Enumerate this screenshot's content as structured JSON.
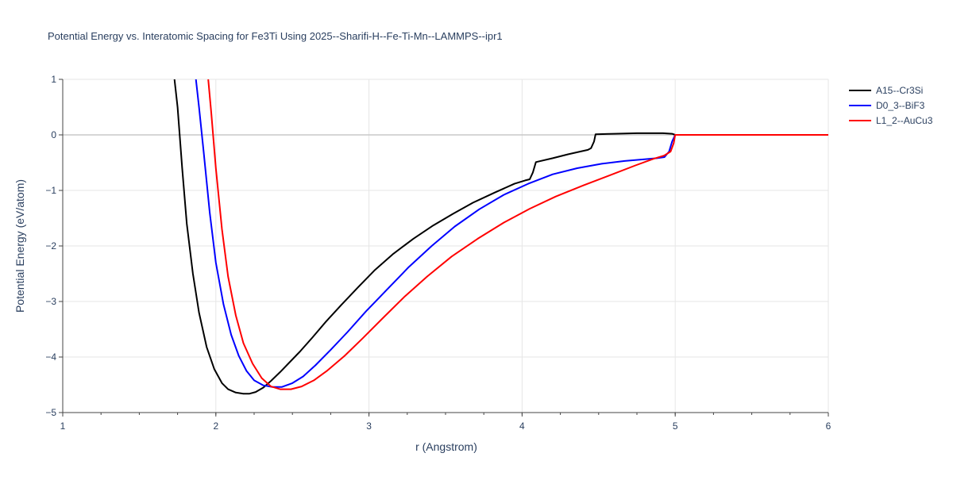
{
  "chart_data": {
    "type": "line",
    "title": "Potential Energy vs. Interatomic Spacing for Fe3Ti Using 2025--Sharifi-H--Fe-Ti-Mn--LAMMPS--ipr1",
    "xlabel": "r (Angstrom)",
    "ylabel": "Potential Energy (eV/atom)",
    "xlim": [
      1,
      6
    ],
    "ylim": [
      -5,
      1
    ],
    "xticks": [
      1,
      2,
      3,
      4,
      5,
      6
    ],
    "xtick_labels": [
      "1",
      "2",
      "3",
      "4",
      "5",
      "6"
    ],
    "yticks": [
      1,
      0,
      -1,
      -2,
      -3,
      -4,
      -5
    ],
    "ytick_labels": [
      "1",
      "0",
      "−1",
      "−2",
      "−3",
      "−4",
      "−5"
    ],
    "grid": true,
    "legend_position": "top-right",
    "series": [
      {
        "name": "A15--Cr3Si",
        "color": "#000000",
        "x": [
          1.73,
          1.75,
          1.78,
          1.81,
          1.85,
          1.89,
          1.94,
          1.99,
          2.04,
          2.08,
          2.13,
          2.18,
          2.22,
          2.26,
          2.31,
          2.36,
          2.42,
          2.48,
          2.55,
          2.63,
          2.72,
          2.82,
          2.93,
          3.04,
          3.16,
          3.29,
          3.42,
          3.55,
          3.68,
          3.82,
          3.95,
          4.02,
          4.05,
          4.07,
          4.09,
          4.2,
          4.3,
          4.38,
          4.43,
          4.45,
          4.47,
          4.48,
          4.6,
          4.75,
          4.92,
          4.98,
          5.0,
          5.2,
          5.5,
          6.0
        ],
        "y": [
          1.0,
          0.5,
          -0.6,
          -1.6,
          -2.5,
          -3.2,
          -3.82,
          -4.22,
          -4.47,
          -4.58,
          -4.64,
          -4.66,
          -4.66,
          -4.63,
          -4.55,
          -4.43,
          -4.27,
          -4.1,
          -3.9,
          -3.65,
          -3.36,
          -3.06,
          -2.74,
          -2.43,
          -2.14,
          -1.87,
          -1.63,
          -1.42,
          -1.22,
          -1.04,
          -0.88,
          -0.82,
          -0.8,
          -0.68,
          -0.49,
          -0.42,
          -0.35,
          -0.3,
          -0.27,
          -0.24,
          -0.12,
          0.01,
          0.02,
          0.03,
          0.03,
          0.02,
          0.0,
          0.0,
          0.0,
          0.0
        ]
      },
      {
        "name": "D0_3--BiF3",
        "color": "#0000ff",
        "x": [
          1.87,
          1.89,
          1.92,
          1.96,
          2.0,
          2.05,
          2.1,
          2.15,
          2.2,
          2.25,
          2.31,
          2.37,
          2.43,
          2.5,
          2.57,
          2.65,
          2.75,
          2.86,
          2.98,
          3.12,
          3.26,
          3.41,
          3.56,
          3.72,
          3.88,
          4.04,
          4.2,
          4.36,
          4.52,
          4.67,
          4.8,
          4.88,
          4.93,
          4.96,
          4.98,
          5.0,
          5.2,
          5.5,
          6.0
        ],
        "y": [
          1.0,
          0.5,
          -0.3,
          -1.4,
          -2.3,
          -3.05,
          -3.6,
          -3.98,
          -4.25,
          -4.42,
          -4.51,
          -4.54,
          -4.54,
          -4.47,
          -4.35,
          -4.15,
          -3.87,
          -3.55,
          -3.18,
          -2.78,
          -2.38,
          -2.0,
          -1.65,
          -1.34,
          -1.08,
          -0.88,
          -0.71,
          -0.6,
          -0.52,
          -0.47,
          -0.44,
          -0.42,
          -0.4,
          -0.3,
          -0.12,
          0.0,
          0.0,
          0.0,
          0.0
        ]
      },
      {
        "name": "L1_2--AuCu3",
        "color": "#ff0000",
        "x": [
          1.95,
          1.97,
          2.0,
          2.04,
          2.08,
          2.13,
          2.18,
          2.24,
          2.3,
          2.36,
          2.42,
          2.49,
          2.56,
          2.64,
          2.73,
          2.84,
          2.96,
          3.09,
          3.23,
          3.38,
          3.54,
          3.71,
          3.88,
          4.05,
          4.22,
          4.4,
          4.58,
          4.74,
          4.86,
          4.93,
          4.97,
          4.99,
          5.0,
          5.2,
          5.5,
          6.0
        ],
        "y": [
          1.0,
          0.4,
          -0.6,
          -1.7,
          -2.55,
          -3.25,
          -3.75,
          -4.12,
          -4.38,
          -4.53,
          -4.58,
          -4.58,
          -4.53,
          -4.42,
          -4.24,
          -3.98,
          -3.66,
          -3.3,
          -2.92,
          -2.55,
          -2.19,
          -1.87,
          -1.58,
          -1.33,
          -1.11,
          -0.91,
          -0.72,
          -0.55,
          -0.43,
          -0.37,
          -0.3,
          -0.15,
          0.0,
          0.0,
          0.0,
          0.0
        ]
      }
    ]
  }
}
